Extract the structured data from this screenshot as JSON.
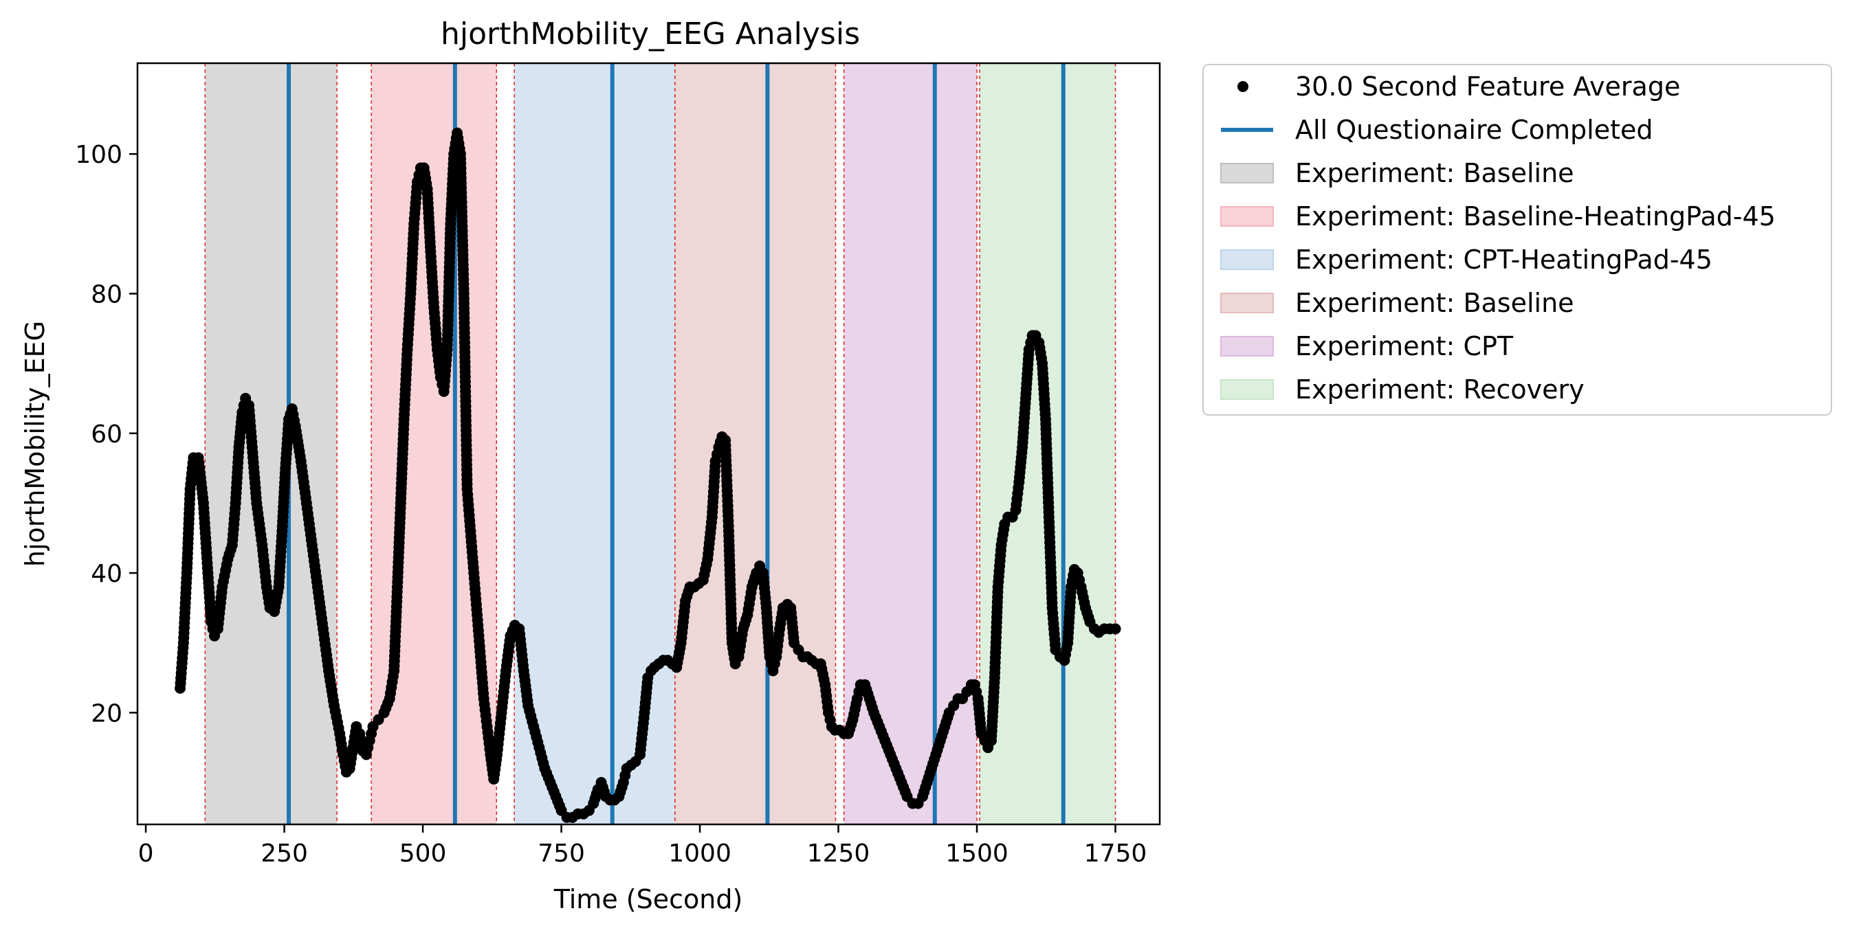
{
  "chart_data": {
    "type": "scatter",
    "title": "hjorthMobility_EEG Analysis",
    "xlabel": "Time (Second)",
    "ylabel": "hjorthMobility_EEG",
    "xlim": [
      -15,
      1830
    ],
    "ylim": [
      4,
      113
    ],
    "xticks": [
      0,
      250,
      500,
      750,
      1000,
      1250,
      1500,
      1750
    ],
    "yticks": [
      20,
      40,
      60,
      80,
      100
    ],
    "grid": false,
    "legend_position": "outside-top-right",
    "colors": {
      "points": "#000000",
      "questionnaire": "#1f77b4",
      "boundary": "#d62728"
    },
    "regions": [
      {
        "label": "Experiment: Baseline",
        "start": 107,
        "end": 345,
        "color": "#bfbfbf"
      },
      {
        "label": "Experiment: Baseline-HeatingPad-45",
        "start": 407,
        "end": 633,
        "color": "#f4b6bd"
      },
      {
        "label": "Experiment: CPT-HeatingPad-45",
        "start": 665,
        "end": 955,
        "color": "#bcd4ea"
      },
      {
        "label": "Experiment: Baseline",
        "start": 955,
        "end": 1245,
        "color": "#e3bcbc"
      },
      {
        "label": "Experiment: CPT",
        "start": 1260,
        "end": 1500,
        "color": "#dcb8dc"
      },
      {
        "label": "Experiment: Recovery",
        "start": 1505,
        "end": 1750,
        "color": "#c6e5c6"
      }
    ],
    "questionnaire_lines": [
      258,
      558,
      842,
      1122,
      1424,
      1656
    ],
    "series": [
      {
        "name": "30.0 Second Feature Average",
        "points": [
          [
            62,
            23.5
          ],
          [
            68,
            30
          ],
          [
            74,
            40
          ],
          [
            80,
            52
          ],
          [
            86,
            56.5
          ],
          [
            95,
            56.5
          ],
          [
            104,
            50
          ],
          [
            112,
            40
          ],
          [
            118,
            33
          ],
          [
            124,
            31
          ],
          [
            130,
            32
          ],
          [
            138,
            38
          ],
          [
            148,
            42
          ],
          [
            156,
            44
          ],
          [
            162,
            50
          ],
          [
            168,
            58
          ],
          [
            174,
            63
          ],
          [
            180,
            65
          ],
          [
            186,
            64
          ],
          [
            192,
            58
          ],
          [
            200,
            50
          ],
          [
            210,
            44
          ],
          [
            218,
            38
          ],
          [
            224,
            35
          ],
          [
            232,
            34.5
          ],
          [
            240,
            38
          ],
          [
            246,
            46
          ],
          [
            252,
            55
          ],
          [
            258,
            62
          ],
          [
            264,
            63.5
          ],
          [
            270,
            61
          ],
          [
            280,
            56
          ],
          [
            290,
            50
          ],
          [
            300,
            44
          ],
          [
            310,
            38
          ],
          [
            320,
            32
          ],
          [
            330,
            26
          ],
          [
            340,
            21
          ],
          [
            350,
            17
          ],
          [
            356,
            14
          ],
          [
            362,
            11.5
          ],
          [
            368,
            12
          ],
          [
            374,
            15
          ],
          [
            380,
            18
          ],
          [
            386,
            17
          ],
          [
            392,
            14.5
          ],
          [
            398,
            14
          ],
          [
            404,
            16
          ],
          [
            410,
            18
          ],
          [
            420,
            19
          ],
          [
            430,
            20
          ],
          [
            440,
            22
          ],
          [
            448,
            26
          ],
          [
            454,
            38
          ],
          [
            460,
            50
          ],
          [
            466,
            62
          ],
          [
            472,
            72
          ],
          [
            478,
            80
          ],
          [
            484,
            90
          ],
          [
            490,
            96
          ],
          [
            496,
            98
          ],
          [
            502,
            98
          ],
          [
            508,
            95
          ],
          [
            514,
            86
          ],
          [
            520,
            78
          ],
          [
            526,
            72
          ],
          [
            532,
            68
          ],
          [
            538,
            66
          ],
          [
            544,
            72
          ],
          [
            550,
            90
          ],
          [
            556,
            100
          ],
          [
            562,
            103
          ],
          [
            568,
            100
          ],
          [
            574,
            80
          ],
          [
            580,
            52
          ],
          [
            586,
            46
          ],
          [
            592,
            40
          ],
          [
            598,
            34
          ],
          [
            604,
            28
          ],
          [
            610,
            22
          ],
          [
            616,
            18
          ],
          [
            622,
            14
          ],
          [
            628,
            10.5
          ],
          [
            634,
            14
          ],
          [
            642,
            20
          ],
          [
            650,
            26
          ],
          [
            658,
            31
          ],
          [
            666,
            32.5
          ],
          [
            674,
            32
          ],
          [
            682,
            26
          ],
          [
            690,
            21
          ],
          [
            700,
            18
          ],
          [
            710,
            15
          ],
          [
            720,
            12
          ],
          [
            730,
            10
          ],
          [
            740,
            8
          ],
          [
            750,
            6
          ],
          [
            760,
            5
          ],
          [
            770,
            5
          ],
          [
            780,
            5.5
          ],
          [
            790,
            5.5
          ],
          [
            800,
            6
          ],
          [
            808,
            7
          ],
          [
            816,
            9
          ],
          [
            822,
            10
          ],
          [
            830,
            8
          ],
          [
            838,
            7.5
          ],
          [
            846,
            7.5
          ],
          [
            854,
            8
          ],
          [
            862,
            10
          ],
          [
            868,
            12
          ],
          [
            876,
            12.5
          ],
          [
            884,
            13
          ],
          [
            892,
            14
          ],
          [
            900,
            20
          ],
          [
            906,
            25
          ],
          [
            912,
            26
          ],
          [
            918,
            26.5
          ],
          [
            926,
            27
          ],
          [
            934,
            27.5
          ],
          [
            942,
            27.5
          ],
          [
            950,
            27
          ],
          [
            958,
            26.5
          ],
          [
            966,
            30
          ],
          [
            974,
            36
          ],
          [
            982,
            38
          ],
          [
            990,
            38
          ],
          [
            998,
            38.5
          ],
          [
            1006,
            39
          ],
          [
            1014,
            42
          ],
          [
            1022,
            48
          ],
          [
            1028,
            56
          ],
          [
            1034,
            58
          ],
          [
            1040,
            59.5
          ],
          [
            1046,
            59
          ],
          [
            1052,
            46
          ],
          [
            1058,
            30
          ],
          [
            1064,
            27
          ],
          [
            1070,
            28
          ],
          [
            1078,
            32
          ],
          [
            1086,
            34
          ],
          [
            1094,
            38
          ],
          [
            1102,
            40
          ],
          [
            1108,
            41
          ],
          [
            1114,
            40
          ],
          [
            1120,
            35
          ],
          [
            1126,
            28
          ],
          [
            1132,
            26
          ],
          [
            1138,
            28
          ],
          [
            1144,
            32
          ],
          [
            1150,
            35
          ],
          [
            1158,
            35.5
          ],
          [
            1164,
            35
          ],
          [
            1170,
            30
          ],
          [
            1178,
            29
          ],
          [
            1186,
            28
          ],
          [
            1194,
            28
          ],
          [
            1202,
            27.5
          ],
          [
            1210,
            27
          ],
          [
            1218,
            27
          ],
          [
            1226,
            24
          ],
          [
            1232,
            20
          ],
          [
            1238,
            18
          ],
          [
            1244,
            17.5
          ],
          [
            1252,
            17.5
          ],
          [
            1260,
            17
          ],
          [
            1268,
            17
          ],
          [
            1276,
            19
          ],
          [
            1284,
            22
          ],
          [
            1290,
            24
          ],
          [
            1298,
            24
          ],
          [
            1306,
            22
          ],
          [
            1314,
            20
          ],
          [
            1324,
            18
          ],
          [
            1334,
            16
          ],
          [
            1344,
            14
          ],
          [
            1354,
            12
          ],
          [
            1364,
            10
          ],
          [
            1374,
            8
          ],
          [
            1384,
            7
          ],
          [
            1394,
            7
          ],
          [
            1402,
            8
          ],
          [
            1410,
            10
          ],
          [
            1418,
            12
          ],
          [
            1426,
            14
          ],
          [
            1434,
            16
          ],
          [
            1442,
            18
          ],
          [
            1450,
            20
          ],
          [
            1458,
            21
          ],
          [
            1466,
            22
          ],
          [
            1474,
            22
          ],
          [
            1482,
            23
          ],
          [
            1490,
            24
          ],
          [
            1496,
            24
          ],
          [
            1502,
            22
          ],
          [
            1508,
            17
          ],
          [
            1514,
            16
          ],
          [
            1520,
            15
          ],
          [
            1526,
            16
          ],
          [
            1532,
            25
          ],
          [
            1538,
            38
          ],
          [
            1544,
            44
          ],
          [
            1550,
            47
          ],
          [
            1556,
            48
          ],
          [
            1564,
            48
          ],
          [
            1570,
            49
          ],
          [
            1576,
            53
          ],
          [
            1582,
            58
          ],
          [
            1588,
            65
          ],
          [
            1594,
            72
          ],
          [
            1600,
            74
          ],
          [
            1606,
            74
          ],
          [
            1612,
            73
          ],
          [
            1618,
            70
          ],
          [
            1624,
            62
          ],
          [
            1630,
            48
          ],
          [
            1636,
            35
          ],
          [
            1642,
            29
          ],
          [
            1650,
            28
          ],
          [
            1658,
            27.5
          ],
          [
            1664,
            30
          ],
          [
            1670,
            38
          ],
          [
            1676,
            40.5
          ],
          [
            1682,
            40
          ],
          [
            1688,
            38
          ],
          [
            1696,
            35
          ],
          [
            1704,
            33
          ],
          [
            1712,
            32
          ],
          [
            1720,
            31.5
          ],
          [
            1730,
            32
          ],
          [
            1740,
            32
          ],
          [
            1750,
            32
          ]
        ]
      },
      {
        "name": "All Questionaire Completed"
      }
    ]
  }
}
